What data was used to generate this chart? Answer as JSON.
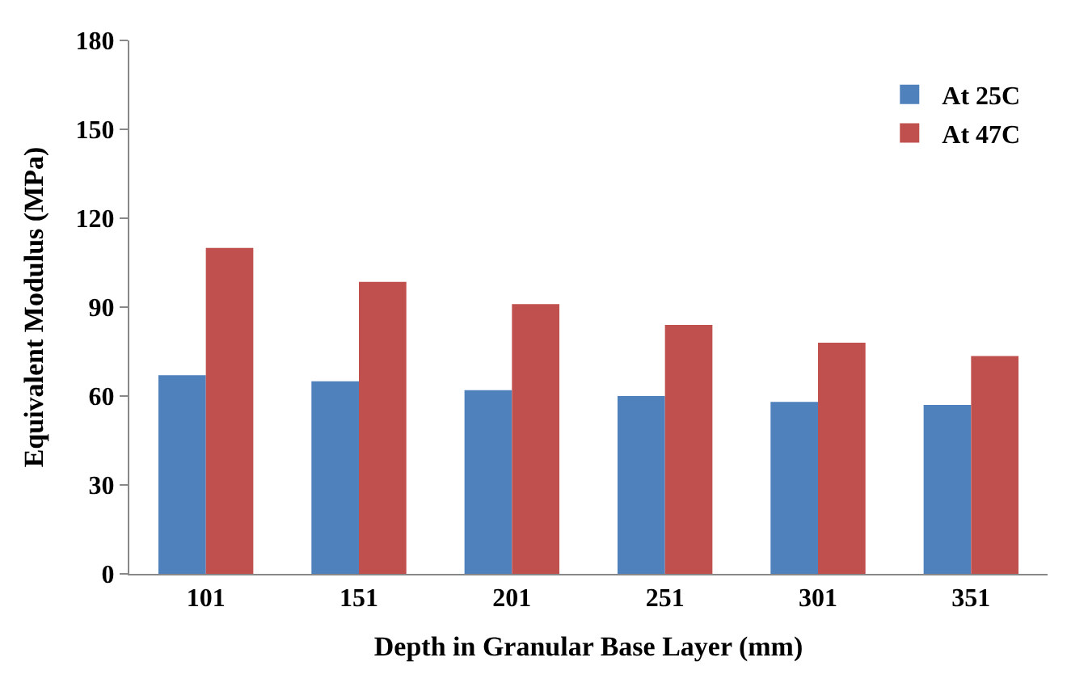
{
  "chart_data": {
    "type": "bar",
    "xlabel": "Depth in Granular Base Layer (mm)",
    "ylabel": "Equivalent Modulus (MPa)",
    "categories": [
      "101",
      "151",
      "201",
      "251",
      "301",
      "351"
    ],
    "series": [
      {
        "name": "At 25C",
        "color": "#4f81bd",
        "values": [
          67,
          65,
          62,
          60,
          58,
          57
        ]
      },
      {
        "name": "At 47C",
        "color": "#c0504d",
        "values": [
          110,
          98.5,
          91,
          84,
          78,
          73.5
        ]
      }
    ],
    "ylim": [
      0,
      180
    ],
    "yticks": [
      0,
      30,
      60,
      90,
      120,
      150,
      180
    ],
    "legend": "top right"
  }
}
